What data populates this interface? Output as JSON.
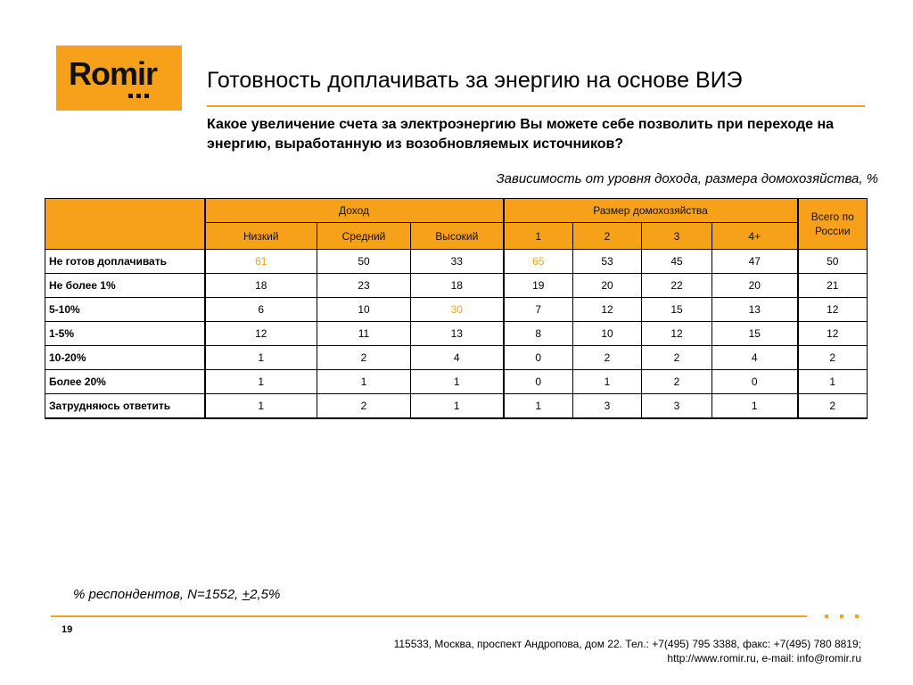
{
  "logo": {
    "text": "Romir"
  },
  "title": "Готовность доплачивать за энергию на основе ВИЭ",
  "question": "Какое увеличение счета за электроэнергию Вы можете себе позволить при переходе на энергию, выработанную из возобновляемых источников?",
  "subtitle": "Зависимость от уровня дохода, размера домохозяйства, %",
  "table": {
    "groups": {
      "income": "Доход",
      "household": "Размер домохозяйства",
      "total": "Всего по России"
    },
    "income_cols": [
      "Низкий",
      "Средний",
      "Высокий"
    ],
    "household_cols": [
      "1",
      "2",
      "3",
      "4+"
    ],
    "rows": [
      {
        "label": "Не готов доплачивать",
        "cells": [
          {
            "v": "61",
            "hi": true
          },
          {
            "v": "50"
          },
          {
            "v": "33"
          },
          {
            "v": "65",
            "hi": true
          },
          {
            "v": "53"
          },
          {
            "v": "45"
          },
          {
            "v": "47"
          },
          {
            "v": "50"
          }
        ]
      },
      {
        "label": "Не более 1%",
        "cells": [
          {
            "v": "18"
          },
          {
            "v": "23"
          },
          {
            "v": "18"
          },
          {
            "v": "19"
          },
          {
            "v": "20"
          },
          {
            "v": "22"
          },
          {
            "v": "20"
          },
          {
            "v": "21"
          }
        ]
      },
      {
        "label": "5-10%",
        "cells": [
          {
            "v": "6"
          },
          {
            "v": "10"
          },
          {
            "v": "30",
            "hi": true
          },
          {
            "v": "7"
          },
          {
            "v": "12"
          },
          {
            "v": "15"
          },
          {
            "v": "13"
          },
          {
            "v": "12"
          }
        ]
      },
      {
        "label": "1-5%",
        "cells": [
          {
            "v": "12"
          },
          {
            "v": "11"
          },
          {
            "v": "13"
          },
          {
            "v": "8"
          },
          {
            "v": "10"
          },
          {
            "v": "12"
          },
          {
            "v": "15"
          },
          {
            "v": "12"
          }
        ]
      },
      {
        "label": "10-20%",
        "cells": [
          {
            "v": "1"
          },
          {
            "v": "2"
          },
          {
            "v": "4"
          },
          {
            "v": "0"
          },
          {
            "v": "2"
          },
          {
            "v": "2"
          },
          {
            "v": "4"
          },
          {
            "v": "2"
          }
        ]
      },
      {
        "label": "Более 20%",
        "cells": [
          {
            "v": "1"
          },
          {
            "v": "1"
          },
          {
            "v": "1"
          },
          {
            "v": "0"
          },
          {
            "v": "1"
          },
          {
            "v": "2"
          },
          {
            "v": "0"
          },
          {
            "v": "1"
          }
        ]
      },
      {
        "label": "Затрудняюсь ответить",
        "cells": [
          {
            "v": "1"
          },
          {
            "v": "2"
          },
          {
            "v": "1"
          },
          {
            "v": "1"
          },
          {
            "v": "3"
          },
          {
            "v": "3"
          },
          {
            "v": "1"
          },
          {
            "v": "2"
          }
        ]
      }
    ]
  },
  "footnote": {
    "prefix": "% респондентов, N=1552, ",
    "plusminus": "+",
    "suffix": "2,5%"
  },
  "page_number": "19",
  "contacts": {
    "line1": "115533, Москва, проспект Андропова, дом 22.   Тел.: +7(495) 795 3388, факс: +7(495) 780 8819;",
    "line2": "http://www.romir.ru, e-mail: info@romir.ru"
  },
  "colors": {
    "accent": "#f7a11a",
    "text": "#000000"
  }
}
